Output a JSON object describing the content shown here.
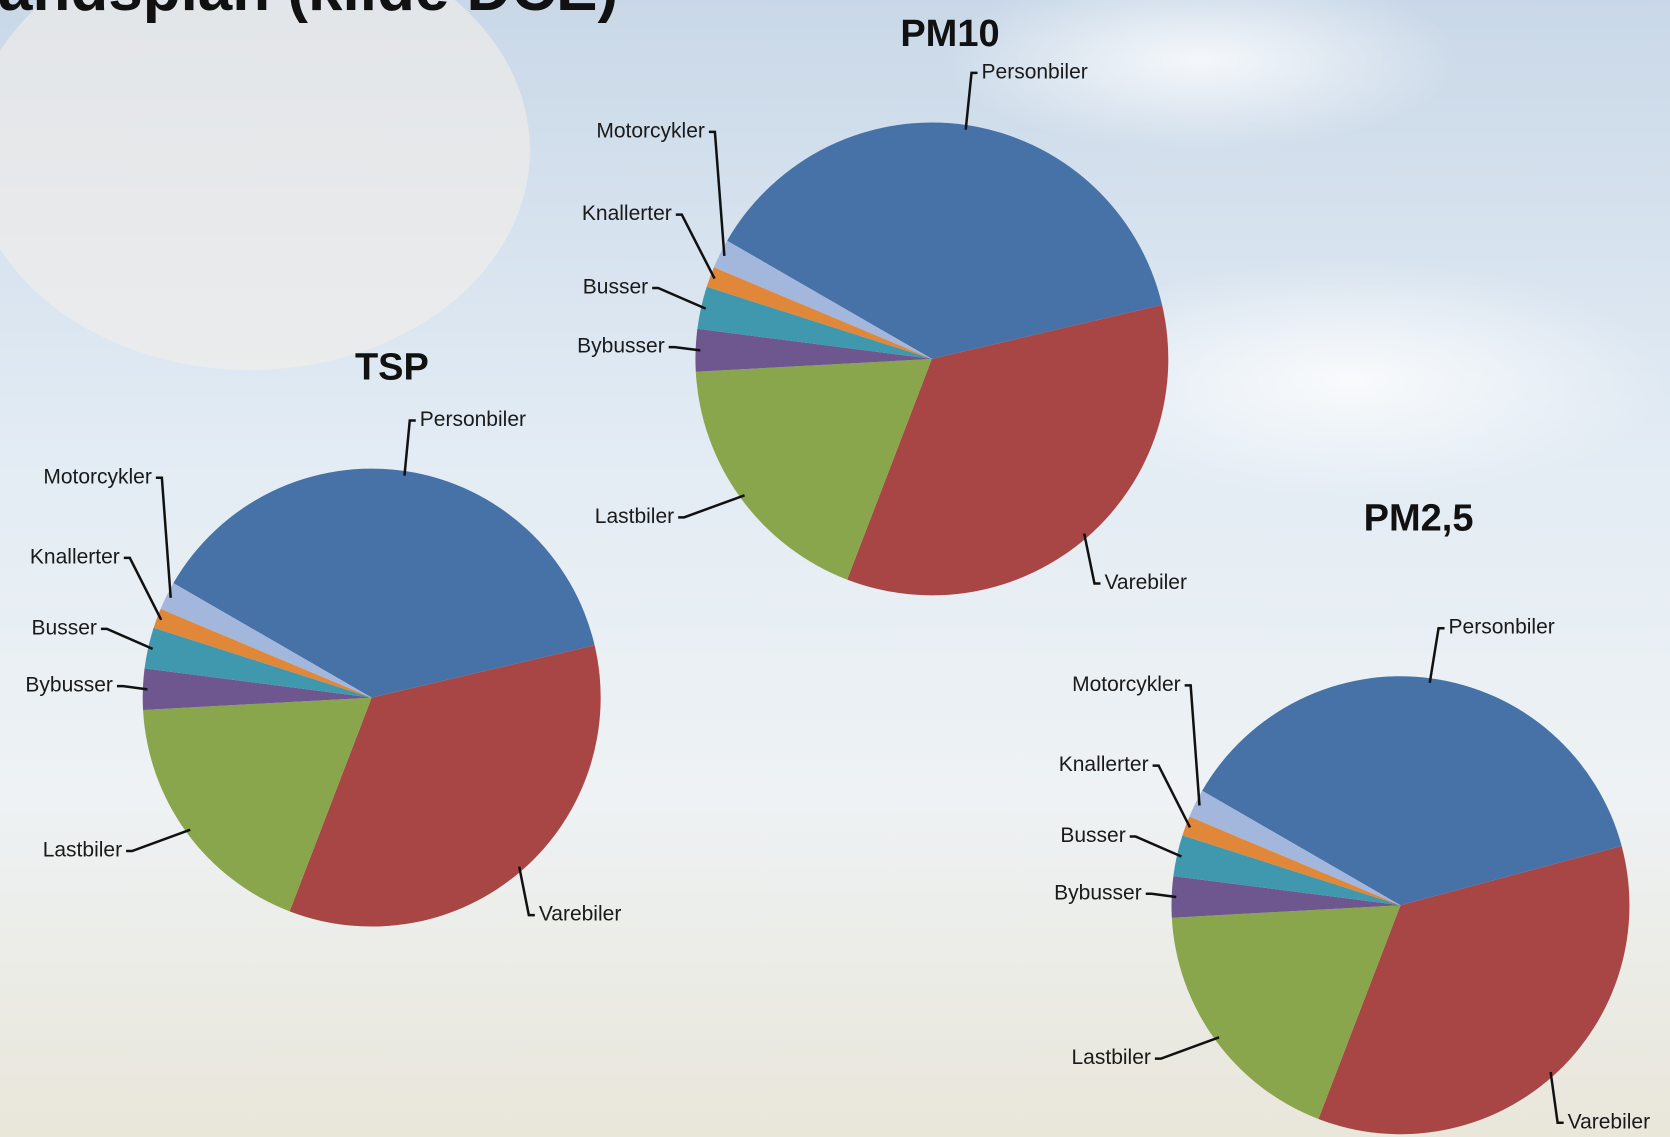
{
  "slide_title": "andsplan (kilde DCE)",
  "chart_data": [
    {
      "type": "pie",
      "title": "TSP",
      "categories": [
        "Personbiler",
        "Varebiler",
        "Lastbiler",
        "Bybusser",
        "Busser",
        "Knallerter",
        "Motorcykler"
      ],
      "values": [
        38,
        34.5,
        18.3,
        2.9,
        2.9,
        1.4,
        2.0
      ],
      "colors": [
        "#4672a8",
        "#a84646",
        "#8aa64c",
        "#6e568f",
        "#3f98ad",
        "#e0873a",
        "#a3b6dc"
      ]
    },
    {
      "type": "pie",
      "title": "PM10",
      "categories": [
        "Personbiler",
        "Varebiler",
        "Lastbiler",
        "Bybusser",
        "Busser",
        "Knallerter",
        "Motorcykler"
      ],
      "values": [
        38,
        34.5,
        18.3,
        2.9,
        2.9,
        1.4,
        2.0
      ],
      "colors": [
        "#4672a8",
        "#a84646",
        "#8aa64c",
        "#6e568f",
        "#3f98ad",
        "#e0873a",
        "#a3b6dc"
      ]
    },
    {
      "type": "pie",
      "title": "PM2,5",
      "categories": [
        "Personbiler",
        "Varebiler",
        "Lastbiler",
        "Bybusser",
        "Busser",
        "Knallerter",
        "Motorcykler"
      ],
      "values": [
        37.5,
        35,
        18.3,
        2.9,
        2.9,
        1.4,
        2.0
      ],
      "colors": [
        "#4672a8",
        "#a84646",
        "#8aa64c",
        "#6e568f",
        "#3f98ad",
        "#e0873a",
        "#a3b6dc"
      ]
    }
  ]
}
